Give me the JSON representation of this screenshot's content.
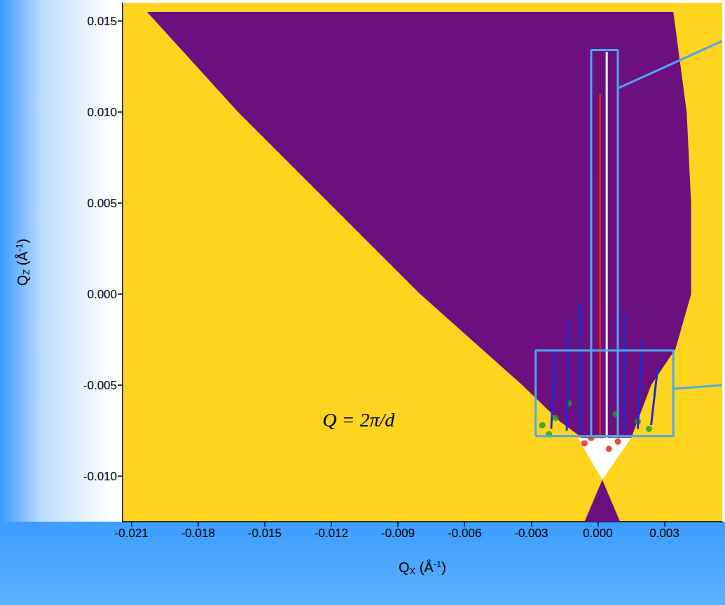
{
  "chart_data": {
    "type": "intensity_map",
    "x_label": "QX (Å-1)",
    "y_label": "QZ (Å-1)",
    "xlim": [
      -0.0214,
      0.0056
    ],
    "xticks": [
      -0.021,
      -0.018,
      -0.015,
      -0.012,
      -0.009,
      -0.006,
      -0.003,
      {
        "value": 0,
        "label": "0.000"
      },
      0.003
    ],
    "ylim": [
      -0.0125,
      0.016
    ],
    "yticks": [
      {
        "value": -0.01,
        "label": "-0.010"
      },
      -0.005,
      {
        "value": 0,
        "label": "0.000"
      },
      0.005,
      {
        "value": 0.01,
        "label": "0.010"
      },
      0.015
    ],
    "grid": false,
    "color": "#ffd41e",
    "annotations": [
      {
        "text": "Q = 2π/d",
        "x": -0.0124,
        "y": -0.0069
      }
    ],
    "series": [
      {
        "type": "polygon",
        "color": "#6e0f80",
        "x": [
          -0.0203,
          0.0034,
          0.004,
          0.0042,
          0.0042,
          0.0035,
          0.0024,
          0.0015,
          -0.0007,
          -0.0017,
          -0.0034,
          -0.008,
          -0.0121,
          -0.0162
        ],
        "y": [
          0.0155,
          0.0155,
          0.01,
          0.005,
          0.0,
          -0.003,
          -0.005,
          -0.0079,
          -0.0079,
          -0.007,
          -0.005,
          0.0,
          0.005,
          0.01
        ]
      },
      {
        "type": "polygon",
        "color": "#ffffff",
        "x": [
          -0.0009,
          0.0015,
          0.0002
        ],
        "y": [
          -0.0079,
          -0.0079,
          -0.0102
        ]
      },
      {
        "type": "polygon",
        "color": "#6e0f80",
        "x": [
          0.0002,
          0.001,
          -0.0006
        ],
        "y": [
          -0.0102,
          -0.0125,
          -0.0125
        ]
      },
      {
        "type": "line",
        "color": "#1a2cd6",
        "line_style": "solid",
        "x": [
          -0.0021,
          -0.0019
        ],
        "y": [
          -0.0074,
          -0.003
        ]
      },
      {
        "type": "line",
        "color": "#1a2cd6",
        "line_style": "solid",
        "x": [
          -0.0014,
          -0.0013
        ],
        "y": [
          -0.0075,
          -0.0015
        ]
      },
      {
        "type": "line",
        "color": "#1a2cd6",
        "line_style": "solid",
        "x": [
          -0.0008,
          -0.0008
        ],
        "y": [
          -0.0076,
          -0.0005
        ]
      },
      {
        "type": "line",
        "color": "#1a2cd6",
        "line_style": "solid",
        "x": [
          0.0012,
          0.0012
        ],
        "y": [
          -0.0076,
          -0.001
        ]
      },
      {
        "type": "line",
        "color": "#1a2cd6",
        "line_style": "solid",
        "x": [
          0.0018,
          0.002
        ],
        "y": [
          -0.0074,
          -0.0025
        ]
      },
      {
        "type": "line",
        "color": "#1a2cd6",
        "line_style": "solid",
        "x": [
          0.0024,
          0.0027
        ],
        "y": [
          -0.0072,
          -0.004
        ]
      },
      {
        "type": "line",
        "color": "#e0201a",
        "line_style": "solid",
        "x": [
          0.0001,
          0.0001
        ],
        "y": [
          -0.0079,
          0.011
        ]
      },
      {
        "type": "line",
        "color": "#ffffff",
        "line_style": "solid",
        "x": [
          0.0004,
          0.0004
        ],
        "y": [
          -0.0079,
          0.0133
        ]
      },
      {
        "type": "scatter",
        "color": "#18a020",
        "marker": "circle",
        "x": [
          -0.0025,
          -0.0019,
          -0.0013,
          0.0018,
          0.0023,
          0.0008,
          -0.0022
        ],
        "y": [
          -0.0072,
          -0.0068,
          -0.006,
          -0.007,
          -0.0074,
          -0.0066,
          -0.0077
        ]
      },
      {
        "type": "scatter",
        "color": "#e0201a",
        "marker": "circle",
        "x": [
          -0.0006,
          0.0005,
          0.0009,
          -0.0003
        ],
        "y": [
          -0.0082,
          -0.0085,
          -0.0081,
          -0.0079
        ]
      },
      {
        "type": "line",
        "color": "#4aa8f0",
        "line_style": "solid",
        "x": [
          -0.0003,
          0.0009,
          0.0009,
          -0.0003,
          -0.0003
        ],
        "y": [
          -0.0078,
          -0.0078,
          0.0134,
          0.0134,
          -0.0078
        ]
      },
      {
        "type": "line",
        "color": "#4aa8f0",
        "line_style": "solid",
        "x": [
          -0.0028,
          0.0034,
          0.0034,
          -0.0028,
          -0.0028
        ],
        "y": [
          -0.0078,
          -0.0078,
          -0.0031,
          -0.0031,
          -0.0078
        ]
      },
      {
        "type": "line",
        "color": "#4aa8f0",
        "line_style": "solid",
        "x": [
          0.0009,
          0.0056
        ],
        "y": [
          0.0113,
          0.0139
        ]
      },
      {
        "type": "line",
        "color": "#4aa8f0",
        "line_style": "solid",
        "x": [
          0.0034,
          0.0056
        ],
        "y": [
          -0.0052,
          -0.005
        ]
      }
    ]
  }
}
